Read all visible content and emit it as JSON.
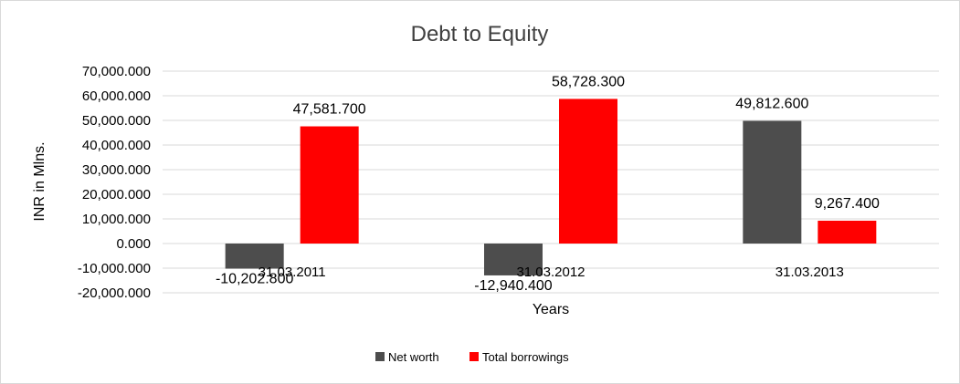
{
  "chart_data": {
    "type": "bar",
    "title": "Debt to Equity",
    "xlabel": "Years",
    "ylabel": "INR in Mlns.",
    "categories": [
      "31.03.2011",
      "31.03.2012",
      "31.03.2013"
    ],
    "series": [
      {
        "name": "Net worth",
        "color": "#4d4d4d",
        "values": [
          -10202.8,
          -12940.4,
          49812.6
        ],
        "labels": [
          "-10,202.800",
          "-12,940.400",
          "49,812.600"
        ]
      },
      {
        "name": "Total borrowings",
        "color": "#ff0000",
        "values": [
          47581.7,
          58728.3,
          9267.4
        ],
        "labels": [
          "47,581.700",
          "58,728.300",
          "9,267.400"
        ]
      }
    ],
    "ylim": [
      -20000,
      70000
    ],
    "ytick_step": 10000,
    "ytick_labels": [
      "70,000.000",
      "60,000.000",
      "50,000.000",
      "40,000.000",
      "30,000.000",
      "20,000.000",
      "10,000.000",
      "0.000",
      "-10,000.000",
      "-20,000.000"
    ],
    "grid": true,
    "legend_position": "bottom"
  }
}
